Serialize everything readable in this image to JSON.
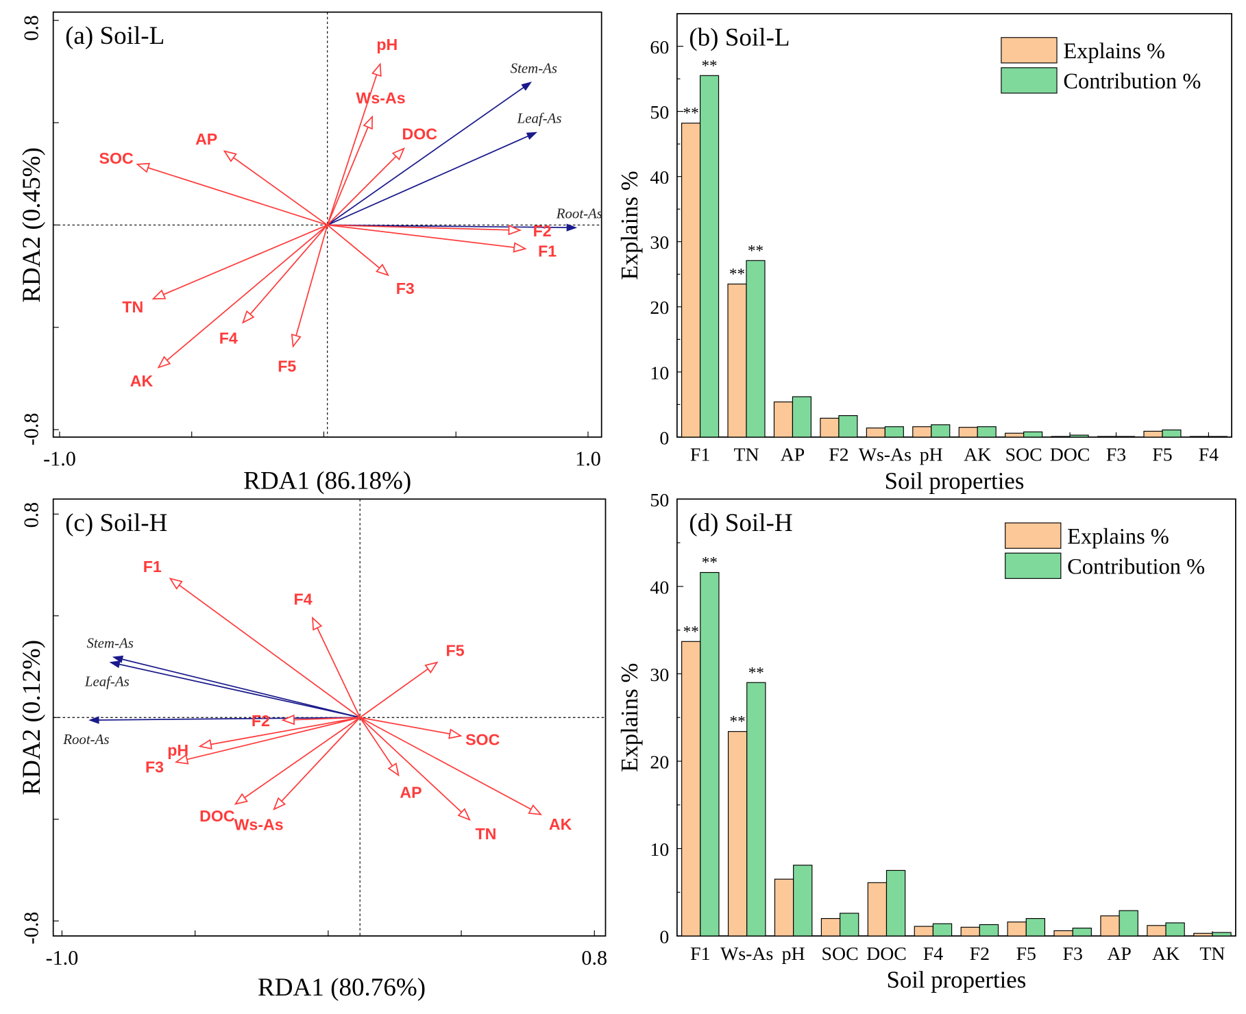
{
  "colors": {
    "env": "#ff3b3b",
    "species": "#1a1a8c",
    "explains": "#fdc898",
    "contribution": "#7fd99b"
  },
  "chart_data": [
    {
      "type": "scatter",
      "subtype": "rda-biplot",
      "title": "(a) Soil-L",
      "xlabel": "RDA1 (86.18%)",
      "ylabel": "RDA2 (0.45%)",
      "xlim": [
        -1.0,
        1.0
      ],
      "ylim": [
        -0.8,
        0.8
      ],
      "xtick_labels": [
        "-1.0",
        "1.0"
      ],
      "ytick_labels": [
        "0.8",
        "-0.8"
      ],
      "env_arrows": [
        {
          "name": "pH",
          "x": 0.2,
          "y": 0.61
        },
        {
          "name": "Ws-As",
          "x": 0.17,
          "y": 0.41
        },
        {
          "name": "DOC",
          "x": 0.29,
          "y": 0.29
        },
        {
          "name": "AP",
          "x": -0.39,
          "y": 0.28
        },
        {
          "name": "SOC",
          "x": -0.72,
          "y": 0.23
        },
        {
          "name": "TN",
          "x": -0.66,
          "y": -0.28
        },
        {
          "name": "F4",
          "x": -0.32,
          "y": -0.37
        },
        {
          "name": "AK",
          "x": -0.64,
          "y": -0.54
        },
        {
          "name": "F5",
          "x": -0.13,
          "y": -0.46
        },
        {
          "name": "F3",
          "x": 0.23,
          "y": -0.19
        },
        {
          "name": "F1",
          "x": 0.75,
          "y": -0.09
        },
        {
          "name": "F2",
          "x": 0.73,
          "y": -0.02
        }
      ],
      "species_arrows": [
        {
          "name": "Stem-As",
          "x": 0.77,
          "y": 0.54
        },
        {
          "name": "Leaf-As",
          "x": 0.79,
          "y": 0.35
        },
        {
          "name": "Root-As",
          "x": 0.94,
          "y": -0.01
        }
      ]
    },
    {
      "type": "bar",
      "title": "(b) Soil-L",
      "xlabel": "Soil properties",
      "ylabel": "Explains %",
      "ylim": [
        0,
        65
      ],
      "yticks": [
        0,
        10,
        20,
        30,
        40,
        50,
        60
      ],
      "legend": "top-right",
      "categories": [
        "F1",
        "TN",
        "AP",
        "F2",
        "Ws-As",
        "pH",
        "AK",
        "SOC",
        "DOC",
        "F3",
        "F5",
        "F4"
      ],
      "series": [
        {
          "name": "Explains %",
          "values": [
            48.2,
            23.5,
            5.4,
            2.9,
            1.4,
            1.6,
            1.5,
            0.6,
            0.1,
            0.1,
            0.9,
            0.1
          ],
          "significance": [
            "**",
            "**",
            "",
            "",
            "",
            "",
            "",
            "",
            "",
            "",
            "",
            ""
          ]
        },
        {
          "name": "Contribution %",
          "values": [
            55.5,
            27.1,
            6.2,
            3.3,
            1.6,
            1.9,
            1.6,
            0.8,
            0.3,
            0.1,
            1.1,
            0.1
          ],
          "significance": [
            "**",
            "**",
            "",
            "",
            "",
            "",
            "",
            "",
            "",
            "",
            "",
            ""
          ]
        }
      ]
    },
    {
      "type": "scatter",
      "subtype": "rda-biplot",
      "title": "(c) Soil-H",
      "xlabel": "RDA1 (80.76%)",
      "ylabel": "RDA2 (0.12%)",
      "xlim": [
        -1.0,
        0.8
      ],
      "ylim": [
        -0.8,
        0.8
      ],
      "xtick_labels": [
        "-1.0",
        "0.8"
      ],
      "ytick_labels": [
        "0.8",
        "-0.8"
      ],
      "env_arrows": [
        {
          "name": "F1",
          "x": -0.64,
          "y": 0.53
        },
        {
          "name": "F4",
          "x": -0.16,
          "y": 0.38
        },
        {
          "name": "F5",
          "x": 0.26,
          "y": 0.21
        },
        {
          "name": "F2",
          "x": -0.26,
          "y": -0.01
        },
        {
          "name": "pH",
          "x": -0.54,
          "y": -0.11
        },
        {
          "name": "F3",
          "x": -0.62,
          "y": -0.17
        },
        {
          "name": "DOC",
          "x": -0.42,
          "y": -0.33
        },
        {
          "name": "Ws-As",
          "x": -0.29,
          "y": -0.35
        },
        {
          "name": "SOC",
          "x": 0.34,
          "y": -0.07
        },
        {
          "name": "AP",
          "x": 0.13,
          "y": -0.22
        },
        {
          "name": "TN",
          "x": 0.37,
          "y": -0.39
        },
        {
          "name": "AK",
          "x": 0.61,
          "y": -0.37
        }
      ],
      "species_arrows": [
        {
          "name": "Stem-As",
          "x": -0.83,
          "y": 0.23
        },
        {
          "name": "Leaf-As",
          "x": -0.84,
          "y": 0.21
        },
        {
          "name": "Root-As",
          "x": -0.91,
          "y": -0.01
        }
      ]
    },
    {
      "type": "bar",
      "title": "(d) Soil-H",
      "xlabel": "Soil properties",
      "ylabel": "Explains %",
      "ylim": [
        0,
        50
      ],
      "yticks": [
        0,
        10,
        20,
        30,
        40,
        50
      ],
      "legend": "top-right",
      "categories": [
        "F1",
        "Ws-As",
        "pH",
        "SOC",
        "DOC",
        "F4",
        "F2",
        "F5",
        "F3",
        "AP",
        "AK",
        "TN"
      ],
      "series": [
        {
          "name": "Explains %",
          "values": [
            33.7,
            23.4,
            6.5,
            2.0,
            6.1,
            1.1,
            1.0,
            1.6,
            0.6,
            2.3,
            1.2,
            0.3
          ],
          "significance": [
            "**",
            "**",
            "",
            "",
            "",
            "",
            "",
            "",
            "",
            "",
            "",
            ""
          ]
        },
        {
          "name": "Contribution %",
          "values": [
            41.6,
            29.0,
            8.1,
            2.6,
            7.5,
            1.4,
            1.3,
            2.0,
            0.9,
            2.9,
            1.5,
            0.4
          ],
          "significance": [
            "**",
            "**",
            "",
            "",
            "",
            "",
            "",
            "",
            "",
            "",
            "",
            ""
          ]
        }
      ]
    }
  ]
}
